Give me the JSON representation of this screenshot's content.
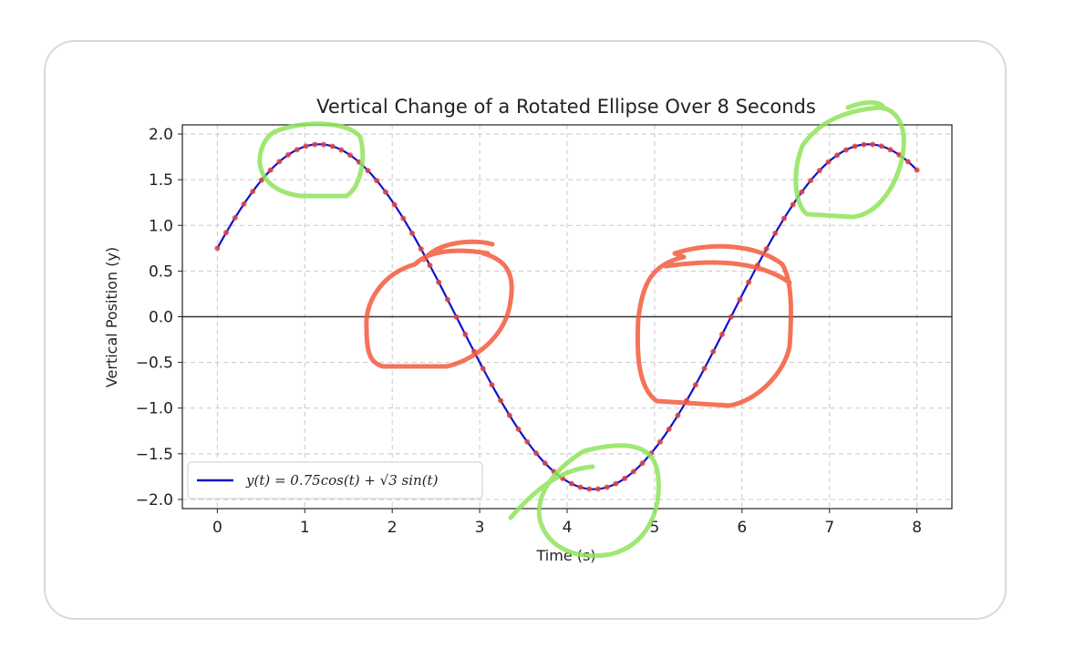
{
  "chart_data": {
    "type": "line",
    "title": "Vertical Change of a Rotated Ellipse Over 8 Seconds",
    "xlabel": "Time (s)",
    "ylabel": "Vertical Position (y)",
    "xlim": [
      -0.4,
      8.4
    ],
    "ylim": [
      -2.1,
      2.1
    ],
    "xticks": [
      0,
      1,
      2,
      3,
      4,
      5,
      6,
      7,
      8
    ],
    "yticks": [
      2.0,
      1.5,
      1.0,
      0.5,
      0.0,
      -0.5,
      -1.0,
      -1.5,
      -2.0
    ],
    "xtick_labels": [
      "0",
      "1",
      "2",
      "3",
      "4",
      "5",
      "6",
      "7",
      "8"
    ],
    "ytick_labels": [
      "2.0",
      "1.5",
      "1.0",
      "0.5",
      "0.0",
      "−0.5",
      "−1.0",
      "−1.5",
      "−2.0"
    ],
    "grid": true,
    "legend_position": "lower-left",
    "series": [
      {
        "name": "y(t) = 0.75cos(t) + √3 sin(t)",
        "function": "0.75*cos(t) + sqrt(3)*sin(t)",
        "x_range": [
          0,
          8
        ],
        "color": "#1111cc",
        "markers": true,
        "marker_color": "#e0433c",
        "samples": 80
      }
    ],
    "reference_line": {
      "y": 0,
      "color": "#333333"
    },
    "annotations": {
      "green_circles_color": "#8fe35a",
      "red_circles_color": "#f25a3c"
    }
  }
}
